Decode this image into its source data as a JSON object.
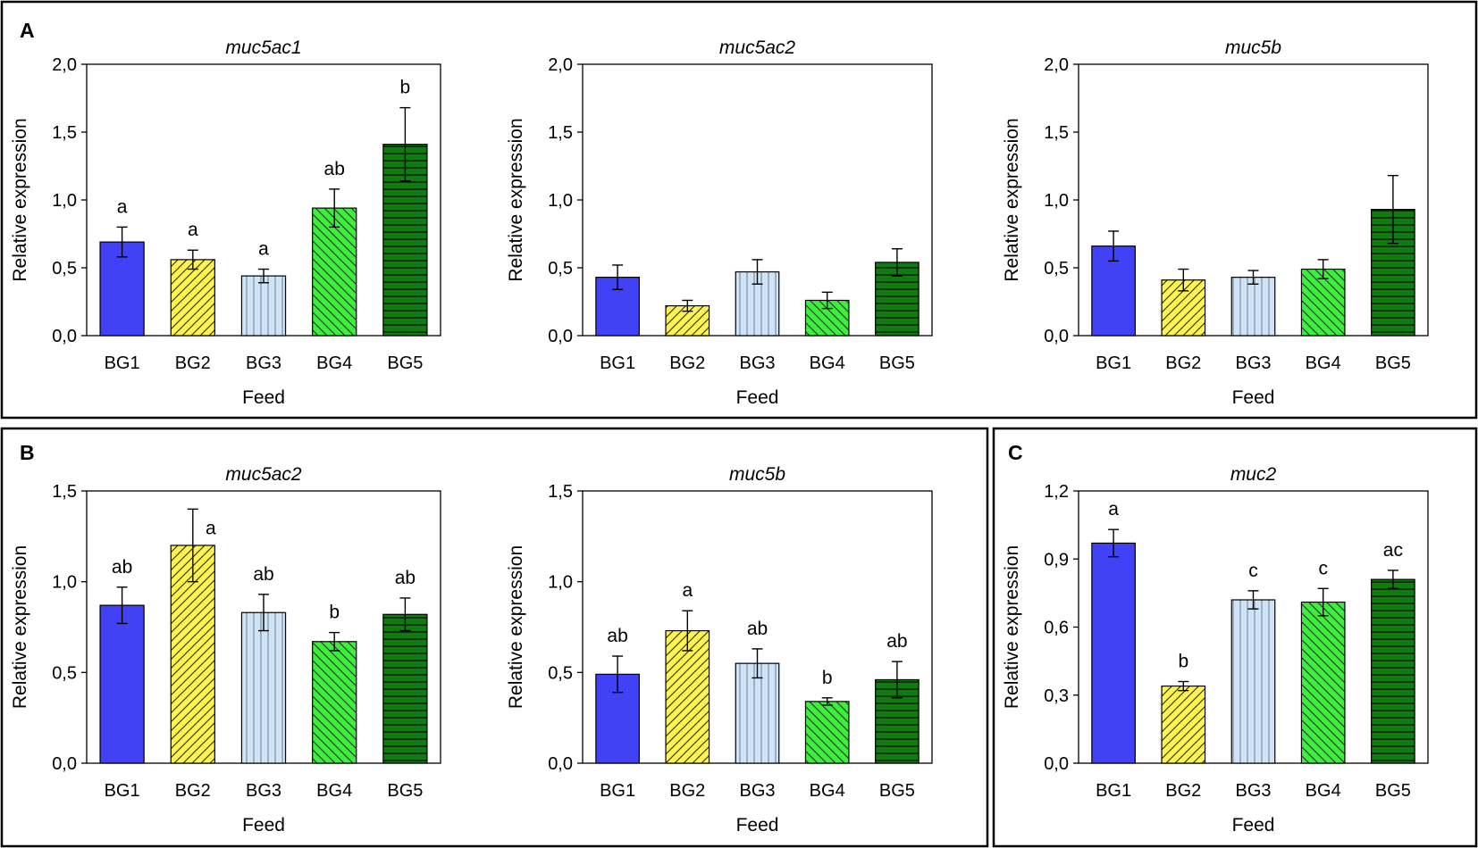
{
  "figure": {
    "panels": [
      {
        "label": "A"
      },
      {
        "label": "B"
      },
      {
        "label": "C"
      }
    ]
  },
  "colors": {
    "BG1": "#4141f5",
    "BG2": "#fff44f",
    "BG3": "#cfe5f7",
    "BG4": "#3dee3d",
    "BG5": "#117a11"
  },
  "chart_data": [
    {
      "panel": "A",
      "type": "bar",
      "title": "muc5ac1",
      "xlabel": "Feed",
      "ylabel": "Relative expression",
      "categories": [
        "BG1",
        "BG2",
        "BG3",
        "BG4",
        "BG5"
      ],
      "values": [
        0.69,
        0.56,
        0.44,
        0.94,
        1.41
      ],
      "errors": [
        0.11,
        0.07,
        0.05,
        0.14,
        0.27
      ],
      "significance": [
        "a",
        "a",
        "a",
        "ab",
        "b"
      ],
      "ylim": [
        0,
        2.0
      ],
      "yticks": [
        "0,0",
        "0,5",
        "1,0",
        "1,5",
        "2,0"
      ]
    },
    {
      "panel": "A",
      "type": "bar",
      "title": "muc5ac2",
      "xlabel": "Feed",
      "ylabel": "Relative expression",
      "categories": [
        "BG1",
        "BG2",
        "BG3",
        "BG4",
        "BG5"
      ],
      "values": [
        0.43,
        0.22,
        0.47,
        0.26,
        0.54
      ],
      "errors": [
        0.09,
        0.04,
        0.09,
        0.06,
        0.1
      ],
      "significance": [
        "",
        "",
        "",
        "",
        ""
      ],
      "ylim": [
        0,
        2.0
      ],
      "yticks": [
        "0,0",
        "0,5",
        "1,0",
        "1,5",
        "2,0"
      ]
    },
    {
      "panel": "A",
      "type": "bar",
      "title": "muc5b",
      "xlabel": "Feed",
      "ylabel": "Relative expression",
      "categories": [
        "BG1",
        "BG2",
        "BG3",
        "BG4",
        "BG5"
      ],
      "values": [
        0.66,
        0.41,
        0.43,
        0.49,
        0.93
      ],
      "errors": [
        0.11,
        0.08,
        0.05,
        0.07,
        0.25
      ],
      "significance": [
        "",
        "",
        "",
        "",
        ""
      ],
      "ylim": [
        0,
        2.0
      ],
      "yticks": [
        "0,0",
        "0,5",
        "1,0",
        "1,5",
        "2,0"
      ]
    },
    {
      "panel": "B",
      "type": "bar",
      "title": "muc5ac2",
      "xlabel": "Feed",
      "ylabel": "Relative expression",
      "categories": [
        "BG1",
        "BG2",
        "BG3",
        "BG4",
        "BG5"
      ],
      "values": [
        0.87,
        1.2,
        0.83,
        0.67,
        0.82
      ],
      "errors": [
        0.1,
        0.2,
        0.1,
        0.05,
        0.09
      ],
      "significance": [
        "ab",
        "a",
        "ab",
        "b",
        "ab"
      ],
      "ylim": [
        0,
        1.5
      ],
      "yticks": [
        "0,0",
        "0,5",
        "1,0",
        "1,5"
      ]
    },
    {
      "panel": "B",
      "type": "bar",
      "title": "muc5b",
      "xlabel": "Feed",
      "ylabel": "Relative expression",
      "categories": [
        "BG1",
        "BG2",
        "BG3",
        "BG4",
        "BG5"
      ],
      "values": [
        0.49,
        0.73,
        0.55,
        0.34,
        0.46
      ],
      "errors": [
        0.1,
        0.11,
        0.08,
        0.02,
        0.1
      ],
      "significance": [
        "ab",
        "a",
        "ab",
        "b",
        "ab"
      ],
      "ylim": [
        0,
        1.5
      ],
      "yticks": [
        "0,0",
        "0,5",
        "1,0",
        "1,5"
      ]
    },
    {
      "panel": "C",
      "type": "bar",
      "title": "muc2",
      "xlabel": "Feed",
      "ylabel": "Relative expression",
      "categories": [
        "BG1",
        "BG2",
        "BG3",
        "BG4",
        "BG5"
      ],
      "values": [
        0.97,
        0.34,
        0.72,
        0.71,
        0.81
      ],
      "errors": [
        0.06,
        0.02,
        0.04,
        0.06,
        0.04
      ],
      "significance": [
        "a",
        "b",
        "c",
        "c",
        "ac"
      ],
      "ylim": [
        0,
        1.2
      ],
      "yticks": [
        "0,0",
        "0,3",
        "0,6",
        "0,9",
        "1,2"
      ]
    }
  ]
}
